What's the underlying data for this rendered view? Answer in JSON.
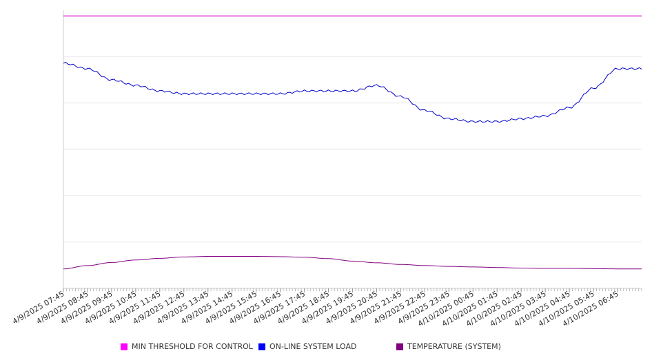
{
  "chart_data": {
    "type": "line",
    "title": "",
    "xlabel": "",
    "ylabel": "",
    "grid": true,
    "legend_placement": "bottom",
    "ylim": [
      0,
      100
    ],
    "x_tick_labels": [
      "4/9/2025 07:45",
      "4/9/2025 08:45",
      "4/9/2025 09:45",
      "4/9/2025 10:45",
      "4/9/2025 11:45",
      "4/9/2025 12:45",
      "4/9/2025 13:45",
      "4/9/2025 14:45",
      "4/9/2025 15:45",
      "4/9/2025 16:45",
      "4/9/2025 17:45",
      "4/9/2025 18:45",
      "4/9/2025 19:45",
      "4/9/2025 20:45",
      "4/9/2025 21:45",
      "4/9/2025 22:45",
      "4/9/2025 23:45",
      "4/10/2025 00:45",
      "4/10/2025 01:45",
      "4/10/2025 02:45",
      "4/10/2025 03:45",
      "4/10/2025 04:45",
      "4/10/2025 05:45",
      "4/10/2025 06:45"
    ],
    "x": [
      "07:45",
      "08:45",
      "09:45",
      "10:45",
      "11:45",
      "12:45",
      "13:45",
      "14:45",
      "15:45",
      "16:45",
      "17:45",
      "18:45",
      "19:45",
      "20:45",
      "21:45",
      "22:45",
      "23:45",
      "00:45",
      "01:45",
      "02:45",
      "03:45",
      "04:45",
      "05:45",
      "06:45",
      "07:45"
    ],
    "series": [
      {
        "name": "MIN THRESHOLD FOR CONTROL",
        "color": "#cc00cc",
        "values": [
          98,
          98,
          98,
          98,
          98,
          98,
          98,
          98,
          98,
          98,
          98,
          98,
          98,
          98,
          98,
          98,
          98,
          98,
          98,
          98,
          98,
          98,
          98,
          98,
          98
        ]
      },
      {
        "name": "ON-LINE SYSTEM LOAD",
        "color": "#0000cc",
        "values": [
          81,
          79,
          75,
          73,
          71,
          70,
          70,
          70,
          70,
          70,
          71,
          71,
          71,
          73,
          69,
          64,
          61,
          60,
          60,
          61,
          62,
          65,
          72,
          79,
          79
        ]
      },
      {
        "name": "TEMPERATURE (SYSTEM)",
        "color": "#800080",
        "values": [
          7,
          8.2,
          9.3,
          10.2,
          10.8,
          11.3,
          11.5,
          11.5,
          11.5,
          11.4,
          11.2,
          10.7,
          9.8,
          9.2,
          8.6,
          8.2,
          7.9,
          7.7,
          7.5,
          7.3,
          7.2,
          7.2,
          7.1,
          7,
          7
        ]
      }
    ]
  },
  "legend": {
    "items": [
      {
        "label": "MIN THRESHOLD FOR CONTROL",
        "color": "#ff00ff"
      },
      {
        "label": "ON-LINE SYSTEM LOAD",
        "color": "#0000ff"
      },
      {
        "label": "TEMPERATURE (SYSTEM)",
        "color": "#800080"
      }
    ]
  }
}
